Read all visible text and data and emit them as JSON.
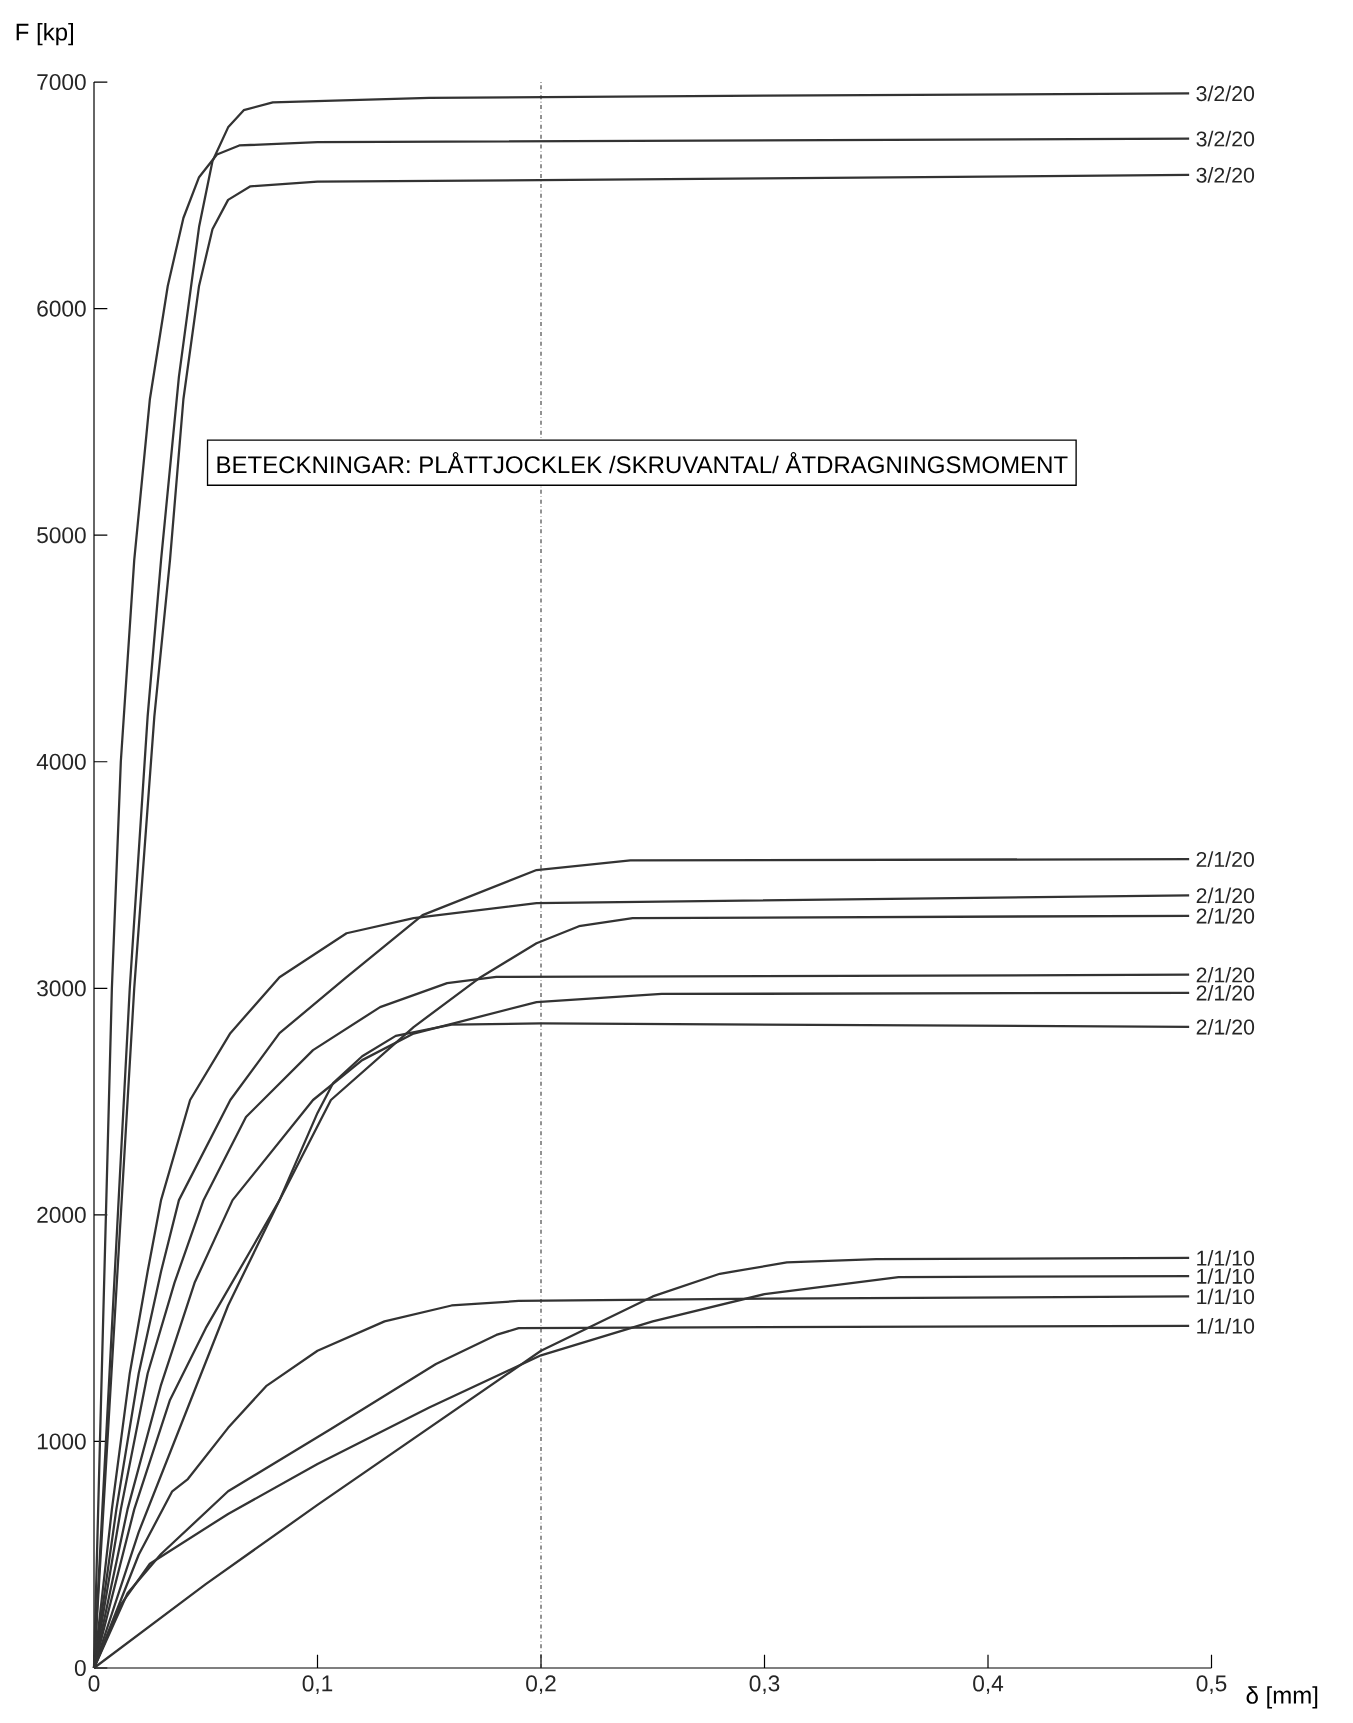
{
  "chart_data": {
    "type": "line",
    "xlabel": "δ [mm]",
    "ylabel": "F [kp]",
    "xlim": [
      0,
      0.5
    ],
    "ylim": [
      0,
      7000
    ],
    "xticks": [
      {
        "value": 0,
        "label": "0"
      },
      {
        "value": 0.1,
        "label": "0,1"
      },
      {
        "value": 0.2,
        "label": "0,2"
      },
      {
        "value": 0.3,
        "label": "0,3"
      },
      {
        "value": 0.4,
        "label": "0,4"
      },
      {
        "value": 0.5,
        "label": "0,5"
      }
    ],
    "yticks": [
      0,
      1000,
      2000,
      3000,
      4000,
      5000,
      6000,
      7000
    ],
    "marker": "none",
    "line_style": "solid",
    "annotations": [
      "BETECKNINGAR: PLÅTTJOCKLEK /SKRUVANTAL/ ÅTDRAGNINGSMOMENT"
    ],
    "ref_lines": [
      {
        "axis": "x",
        "value": 0.2,
        "line_style": "dashdot",
        "color": "#333333"
      }
    ],
    "series": [
      {
        "name": "3/2/20",
        "color": "#333333",
        "x": [
          0,
          0.008,
          0.016,
          0.024,
          0.03,
          0.038,
          0.047,
          0.053,
          0.06,
          0.067,
          0.08,
          0.15,
          0.3,
          0.49
        ],
        "values": [
          0,
          1500,
          3000,
          4200,
          4890,
          5700,
          6360,
          6650,
          6800,
          6876,
          6910,
          6930,
          6940,
          6950
        ]
      },
      {
        "name": "3/2/20",
        "color": "#333333",
        "x": [
          0,
          0.004,
          0.008,
          0.012,
          0.018,
          0.025,
          0.033,
          0.04,
          0.047,
          0.055,
          0.065,
          0.1,
          0.49
        ],
        "values": [
          0,
          1500,
          3000,
          4000,
          4890,
          5600,
          6100,
          6400,
          6580,
          6680,
          6720,
          6735,
          6750
        ]
      },
      {
        "name": "3/2/20",
        "color": "#333333",
        "x": [
          0,
          0.009,
          0.018,
          0.027,
          0.034,
          0.04,
          0.047,
          0.053,
          0.06,
          0.07,
          0.1,
          0.3,
          0.49
        ],
        "values": [
          0,
          1500,
          3000,
          4200,
          4890,
          5600,
          6100,
          6350,
          6480,
          6540,
          6560,
          6575,
          6590
        ]
      },
      {
        "name": "2/1/20",
        "color": "#333333",
        "x": [
          0,
          0.01,
          0.02,
          0.03,
          0.038,
          0.061,
          0.083,
          0.113,
          0.147,
          0.198,
          0.24,
          0.49
        ],
        "values": [
          0,
          700,
          1300,
          1750,
          2065,
          2507,
          2802,
          3049,
          3323,
          3522,
          3565,
          3570
        ]
      },
      {
        "name": "2/1/20",
        "color": "#333333",
        "x": [
          0,
          0.008,
          0.016,
          0.024,
          0.03,
          0.043,
          0.061,
          0.083,
          0.113,
          0.143,
          0.198,
          0.49
        ],
        "values": [
          0,
          700,
          1300,
          1750,
          2065,
          2507,
          2802,
          3049,
          3243,
          3310,
          3376,
          3410
        ]
      },
      {
        "name": "2/1/20",
        "color": "#333333",
        "x": [
          0,
          0.02,
          0.04,
          0.06,
          0.083,
          0.106,
          0.143,
          0.173,
          0.198,
          0.217,
          0.241,
          0.49
        ],
        "values": [
          0,
          600,
          1100,
          1600,
          2065,
          2507,
          2829,
          3049,
          3199,
          3274,
          3310,
          3320
        ]
      },
      {
        "name": "2/1/20",
        "color": "#333333",
        "x": [
          0,
          0.012,
          0.024,
          0.036,
          0.049,
          0.068,
          0.098,
          0.128,
          0.158,
          0.18,
          0.49
        ],
        "values": [
          0,
          700,
          1300,
          1700,
          2065,
          2432,
          2727,
          2917,
          3023,
          3050,
          3060
        ]
      },
      {
        "name": "2/1/20",
        "color": "#333333",
        "x": [
          0,
          0.015,
          0.03,
          0.045,
          0.062,
          0.098,
          0.12,
          0.143,
          0.198,
          0.254,
          0.49
        ],
        "values": [
          0,
          700,
          1250,
          1700,
          2065,
          2507,
          2683,
          2800,
          2939,
          2975,
          2980
        ]
      },
      {
        "name": "2/1/20",
        "color": "#333333",
        "x": [
          0,
          0.018,
          0.034,
          0.05,
          0.072,
          0.083,
          0.1,
          0.107,
          0.12,
          0.135,
          0.16,
          0.2,
          0.49
        ],
        "values": [
          0,
          700,
          1183,
          1500,
          1876,
          2065,
          2450,
          2582,
          2700,
          2790,
          2840,
          2845,
          2830
        ]
      },
      {
        "name": "1/1/10",
        "color": "#333333",
        "x": [
          0,
          0.05,
          0.1,
          0.15,
          0.2,
          0.25,
          0.28,
          0.31,
          0.35,
          0.49
        ],
        "values": [
          0,
          370,
          720,
          1060,
          1400,
          1640,
          1740,
          1790,
          1805,
          1810
        ]
      },
      {
        "name": "1/1/10",
        "color": "#333333",
        "x": [
          0,
          0.012,
          0.025,
          0.06,
          0.1,
          0.15,
          0.2,
          0.25,
          0.3,
          0.36,
          0.49
        ],
        "values": [
          0,
          280,
          460,
          680,
          900,
          1150,
          1380,
          1530,
          1650,
          1725,
          1730
        ]
      },
      {
        "name": "1/1/10",
        "color": "#333333",
        "x": [
          0,
          0.02,
          0.035,
          0.042,
          0.06,
          0.077,
          0.1,
          0.13,
          0.16,
          0.19,
          0.3,
          0.49
        ],
        "values": [
          0,
          500,
          780,
          834,
          1060,
          1244,
          1400,
          1530,
          1600,
          1620,
          1630,
          1640
        ]
      },
      {
        "name": "1/1/10",
        "color": "#333333",
        "x": [
          0,
          0.015,
          0.03,
          0.06,
          0.106,
          0.153,
          0.18,
          0.19,
          0.3,
          0.49
        ],
        "values": [
          0,
          330,
          503,
          780,
          1055,
          1342,
          1470,
          1500,
          1505,
          1510
        ]
      }
    ]
  }
}
